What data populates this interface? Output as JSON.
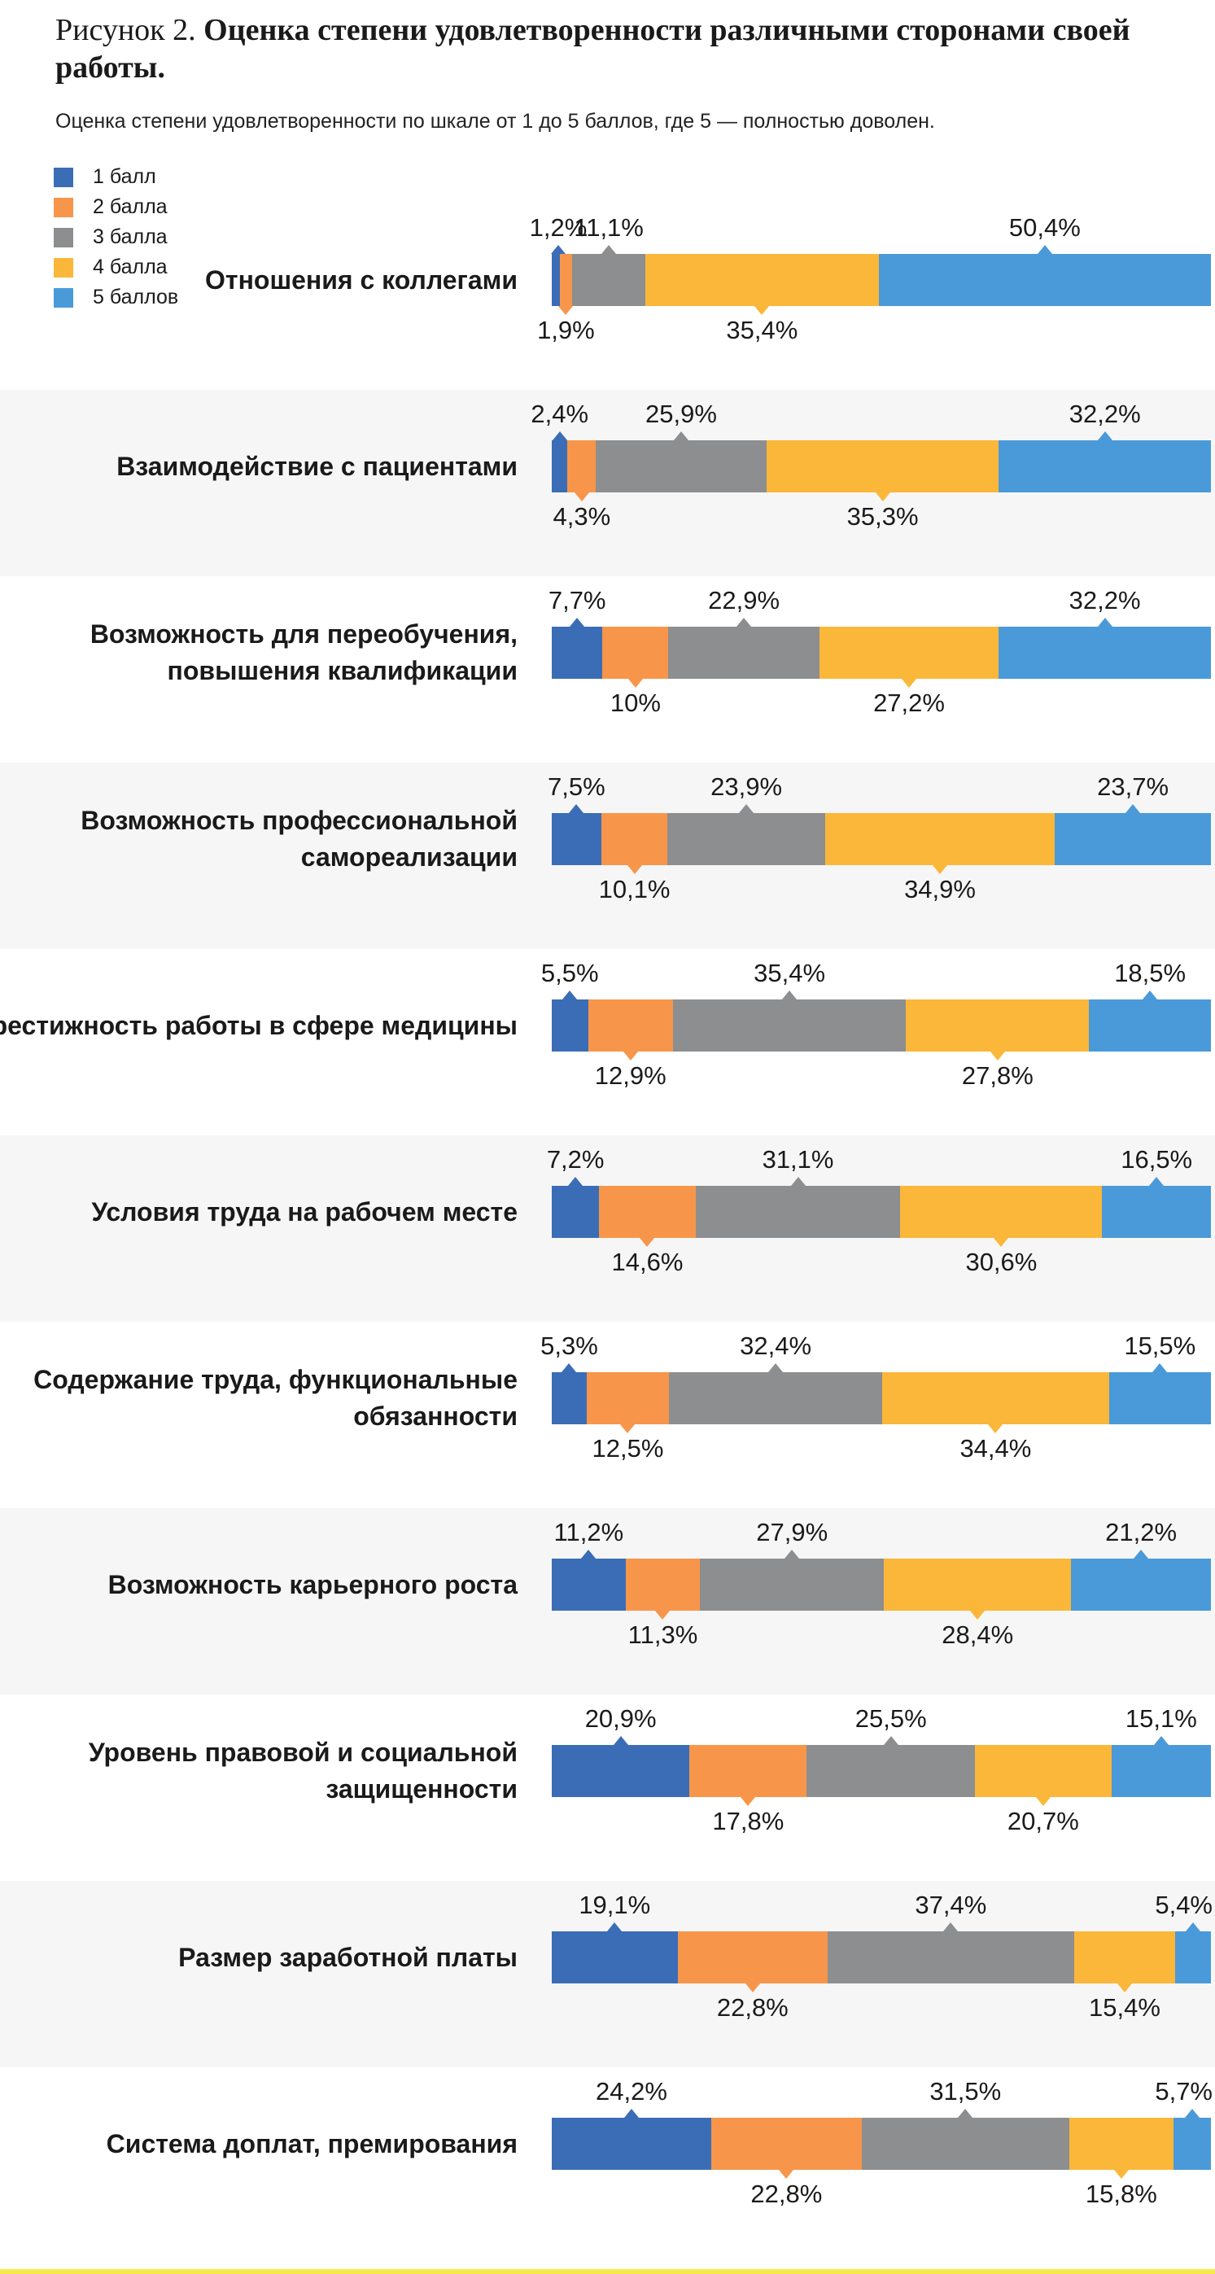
{
  "figure": {
    "prefix": "Рисунок 2.",
    "title": "Оценка степени удовлетворенности различными сторонами своей работы.",
    "subtitle": "Оценка степени удовлетворенности по шкале от 1 до 5 баллов, где 5 — полностью доволен."
  },
  "colors": {
    "1": "#3b6db7",
    "2": "#f7964a",
    "3": "#8c8e90",
    "4": "#fbb739",
    "5": "#4a9ad9"
  },
  "chart_data": {
    "type": "bar",
    "orientation": "horizontal",
    "stacked": true,
    "unit": "%",
    "legend_position": "top-left",
    "series": [
      {
        "name": "1 балл",
        "color": "#3b6db7"
      },
      {
        "name": "2 балла",
        "color": "#f7964a"
      },
      {
        "name": "3 балла",
        "color": "#8c8e90"
      },
      {
        "name": "4 балла",
        "color": "#fbb739"
      },
      {
        "name": "5 баллов",
        "color": "#4a9ad9"
      }
    ],
    "categories": [
      "Отношения с коллегами",
      "Взаимодействие с пациентами",
      "Возможность для переобучения,\nповышения квалификации",
      "Возможность профессиональной\nсамореализации",
      "Престижность работы в сфере медицины",
      "Условия труда на рабочем месте",
      "Содержание труда, функциональные\nобязанности",
      "Возможность карьерного роста",
      "Уровень правовой и социальной\nзащищенности",
      "Размер заработной платы",
      "Система доплат, премирования"
    ],
    "values": [
      [
        1.2,
        1.9,
        11.1,
        35.4,
        50.4
      ],
      [
        2.4,
        4.3,
        25.9,
        35.3,
        32.2
      ],
      [
        7.7,
        10,
        22.9,
        27.2,
        32.2
      ],
      [
        7.5,
        10.1,
        23.9,
        34.9,
        23.7
      ],
      [
        5.5,
        12.9,
        35.4,
        27.8,
        18.5
      ],
      [
        7.2,
        14.6,
        31.1,
        30.6,
        16.5
      ],
      [
        5.3,
        12.5,
        32.4,
        34.4,
        15.5
      ],
      [
        11.2,
        11.3,
        27.9,
        28.4,
        21.2
      ],
      [
        20.9,
        17.8,
        25.5,
        20.7,
        15.1
      ],
      [
        19.1,
        22.8,
        37.4,
        15.4,
        5.4
      ],
      [
        24.2,
        22.8,
        31.5,
        15.8,
        5.7
      ]
    ],
    "labels": [
      [
        "1,2%",
        "1,9%",
        "11,1%",
        "35,4%",
        "50,4%"
      ],
      [
        "2,4%",
        "4,3%",
        "25,9%",
        "35,3%",
        "32,2%"
      ],
      [
        "7,7%",
        "10%",
        "22,9%",
        "27,2%",
        "32,2%"
      ],
      [
        "7,5%",
        "10,1%",
        "23,9%",
        "34,9%",
        "23,7%"
      ],
      [
        "5,5%",
        "12,9%",
        "35,4%",
        "27,8%",
        "18,5%"
      ],
      [
        "7,2%",
        "14,6%",
        "31,1%",
        "30,6%",
        "16,5%"
      ],
      [
        "5,3%",
        "12,5%",
        "32,4%",
        "34,4%",
        "15,5%"
      ],
      [
        "11,2%",
        "11,3%",
        "27,9%",
        "28,4%",
        "21,2%"
      ],
      [
        "20,9%",
        "17,8%",
        "25,5%",
        "20,7%",
        "15,1%"
      ],
      [
        "19,1%",
        "22,8%",
        "37,4%",
        "15,4%",
        "5,4%"
      ],
      [
        "24,2%",
        "22,8%",
        "31,5%",
        "15,8%",
        "5,7%"
      ]
    ]
  }
}
